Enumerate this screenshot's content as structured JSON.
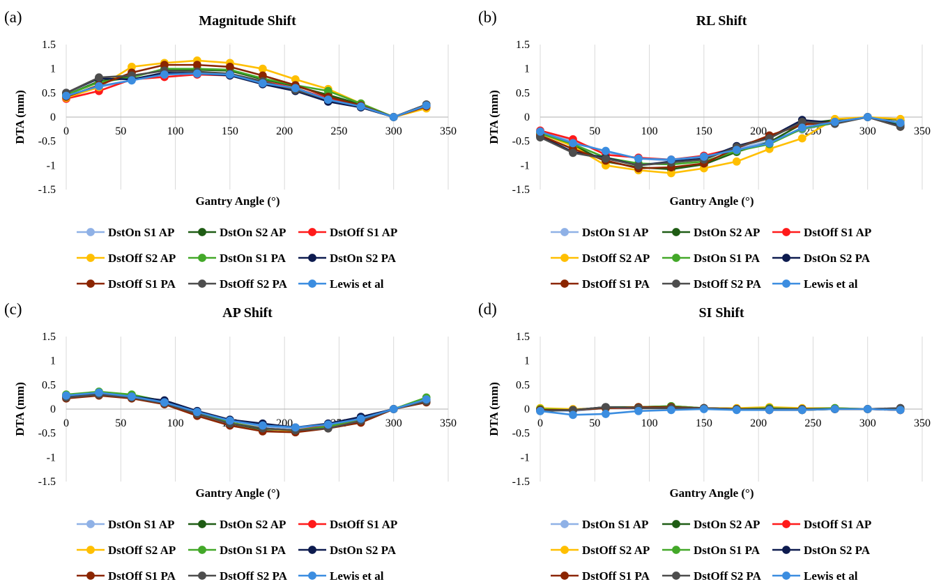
{
  "figure": {
    "panel_labels": [
      "(a)",
      "(b)",
      "(c)",
      "(d)"
    ]
  },
  "legend_labels": [
    "DstOn S1 AP",
    "DstOn S2 AP",
    "DstOff S1 AP",
    "DstOff S2 AP",
    "DstOn S1 PA",
    "DstOn S2 PA",
    "DstOff S1 PA",
    "DstOff S2 PA",
    "Lewis et al"
  ],
  "series_style": [
    {
      "color": "#8fb1e6",
      "hollow": false
    },
    {
      "color": "#1f5c14",
      "hollow": false
    },
    {
      "color": "#ff1a1a",
      "hollow": false
    },
    {
      "color": "#ffbf00",
      "hollow": false
    },
    {
      "color": "#43a829",
      "hollow": false
    },
    {
      "color": "#0d1b4f",
      "hollow": false
    },
    {
      "color": "#8b2500",
      "hollow": false
    },
    {
      "color": "#4d4d4d",
      "hollow": false
    },
    {
      "color": "#3b8de0",
      "hollow": false
    }
  ],
  "chart_data": [
    {
      "type": "line",
      "title": "Magnitude Shift",
      "xlabel": "Gantry Angle (°)",
      "ylabel": "DTA (mm)",
      "xlim": [
        0,
        350
      ],
      "ylim": [
        -1.5,
        1.5
      ],
      "xticks": [
        0,
        50,
        100,
        150,
        200,
        250,
        300,
        350
      ],
      "yticks": [
        1.5,
        1,
        0.5,
        0,
        -0.5,
        -1,
        -1.5
      ],
      "grid": true,
      "legend_position": "bottom",
      "x": [
        0,
        30,
        60,
        90,
        120,
        150,
        180,
        210,
        240,
        270,
        300,
        330
      ],
      "series": [
        {
          "name": "DstOn S1 AP",
          "values": [
            0.4,
            0.62,
            0.76,
            0.9,
            0.92,
            0.9,
            0.72,
            0.58,
            0.4,
            0.22,
            0,
            0.24
          ]
        },
        {
          "name": "DstOn S2 AP",
          "values": [
            0.46,
            0.74,
            0.84,
            0.98,
            0.98,
            0.96,
            0.78,
            0.64,
            0.46,
            0.26,
            0,
            0.24
          ]
        },
        {
          "name": "DstOff S1 AP",
          "values": [
            0.38,
            0.54,
            0.78,
            0.83,
            0.88,
            0.86,
            0.74,
            0.6,
            0.38,
            0.22,
            0,
            0.22
          ]
        },
        {
          "name": "DstOff S2 AP",
          "values": [
            0.4,
            0.62,
            1.04,
            1.12,
            1.17,
            1.12,
            1.0,
            0.78,
            0.58,
            0.28,
            0,
            0.18
          ]
        },
        {
          "name": "DstOn S1 PA",
          "values": [
            0.46,
            0.72,
            0.82,
            1.0,
            1.0,
            0.98,
            0.8,
            0.66,
            0.54,
            0.28,
            0,
            0.24
          ]
        },
        {
          "name": "DstOn S2 PA",
          "values": [
            0.5,
            0.8,
            0.78,
            0.92,
            0.9,
            0.86,
            0.68,
            0.54,
            0.32,
            0.2,
            0,
            0.26
          ]
        },
        {
          "name": "DstOff S1 PA",
          "values": [
            0.42,
            0.66,
            0.92,
            1.08,
            1.08,
            1.04,
            0.86,
            0.66,
            0.42,
            0.24,
            0,
            0.22
          ]
        },
        {
          "name": "DstOff S2 PA",
          "values": [
            0.5,
            0.82,
            0.86,
            0.96,
            0.94,
            0.9,
            0.74,
            0.56,
            0.36,
            0.22,
            0,
            0.26
          ]
        },
        {
          "name": "Lewis et al",
          "values": [
            0.44,
            0.64,
            0.76,
            0.88,
            0.9,
            0.88,
            0.7,
            0.6,
            0.36,
            0.22,
            0,
            0.24
          ]
        }
      ]
    },
    {
      "type": "line",
      "title": "RL Shift",
      "xlabel": "Gantry Angle (°)",
      "ylabel": "DTA (mm)",
      "xlim": [
        0,
        350
      ],
      "ylim": [
        -1.5,
        1.5
      ],
      "xticks": [
        0,
        50,
        100,
        150,
        200,
        250,
        300,
        350
      ],
      "yticks": [
        1.5,
        1,
        0.5,
        0,
        -0.5,
        -1,
        -1.5
      ],
      "grid": true,
      "legend_position": "bottom",
      "x": [
        0,
        30,
        60,
        90,
        120,
        150,
        180,
        210,
        240,
        270,
        300,
        330
      ],
      "series": [
        {
          "name": "DstOn S1 AP",
          "values": [
            -0.3,
            -0.5,
            -0.72,
            -0.86,
            -0.9,
            -0.84,
            -0.66,
            -0.5,
            -0.26,
            -0.12,
            0,
            -0.12
          ]
        },
        {
          "name": "DstOn S2 AP",
          "values": [
            -0.32,
            -0.58,
            -0.92,
            -1.04,
            -1.08,
            -0.98,
            -0.72,
            -0.52,
            -0.14,
            -0.06,
            0,
            -0.06
          ]
        },
        {
          "name": "DstOff S1 AP",
          "values": [
            -0.28,
            -0.46,
            -0.78,
            -0.84,
            -0.88,
            -0.8,
            -0.64,
            -0.4,
            -0.14,
            -0.1,
            0,
            -0.12
          ]
        },
        {
          "name": "DstOff S2 AP",
          "values": [
            -0.34,
            -0.6,
            -1.0,
            -1.1,
            -1.16,
            -1.06,
            -0.92,
            -0.66,
            -0.44,
            -0.04,
            0,
            -0.04
          ]
        },
        {
          "name": "DstOn S1 PA",
          "values": [
            -0.34,
            -0.56,
            -0.84,
            -0.96,
            -0.98,
            -0.92,
            -0.7,
            -0.56,
            -0.24,
            -0.12,
            0,
            -0.14
          ]
        },
        {
          "name": "DstOn S2 PA",
          "values": [
            -0.4,
            -0.72,
            -0.84,
            -1.0,
            -0.92,
            -0.86,
            -0.6,
            -0.42,
            -0.06,
            -0.12,
            0,
            -0.18
          ]
        },
        {
          "name": "DstOff S1 PA",
          "values": [
            -0.38,
            -0.66,
            -0.9,
            -1.06,
            -1.04,
            -0.96,
            -0.64,
            -0.38,
            -0.16,
            -0.1,
            0,
            -0.2
          ]
        },
        {
          "name": "DstOff S2 PA",
          "values": [
            -0.42,
            -0.74,
            -0.86,
            -1.0,
            -0.94,
            -0.88,
            -0.62,
            -0.44,
            -0.1,
            -0.14,
            0,
            -0.2
          ]
        },
        {
          "name": "Lewis et al",
          "values": [
            -0.3,
            -0.54,
            -0.7,
            -0.86,
            -0.88,
            -0.82,
            -0.68,
            -0.54,
            -0.22,
            -0.1,
            0,
            -0.12
          ]
        }
      ]
    },
    {
      "type": "line",
      "title": "AP Shift",
      "xlabel": "Gantry Angle (°)",
      "ylabel": "DTA (mm)",
      "xlim": [
        0,
        350
      ],
      "ylim": [
        -1.5,
        1.5
      ],
      "xticks": [
        0,
        50,
        100,
        150,
        200,
        250,
        300,
        350
      ],
      "yticks": [
        1.5,
        1,
        0.5,
        0,
        -0.5,
        -1,
        -1.5
      ],
      "grid": true,
      "legend_position": "bottom",
      "x": [
        0,
        30,
        60,
        90,
        120,
        150,
        180,
        210,
        240,
        270,
        300,
        330
      ],
      "series": [
        {
          "name": "DstOn S1 AP",
          "values": [
            0.26,
            0.32,
            0.26,
            0.14,
            -0.08,
            -0.24,
            -0.36,
            -0.4,
            -0.34,
            -0.2,
            0,
            0.2
          ]
        },
        {
          "name": "DstOn S2 AP",
          "values": [
            0.28,
            0.34,
            0.28,
            0.14,
            -0.1,
            -0.3,
            -0.42,
            -0.44,
            -0.36,
            -0.22,
            0,
            0.2
          ]
        },
        {
          "name": "DstOff S1 AP",
          "values": [
            0.24,
            0.3,
            0.24,
            0.12,
            -0.1,
            -0.28,
            -0.4,
            -0.44,
            -0.34,
            -0.2,
            0,
            0.18
          ]
        },
        {
          "name": "DstOff S2 AP",
          "values": [
            0.26,
            0.32,
            0.26,
            0.12,
            -0.1,
            -0.28,
            -0.4,
            -0.46,
            -0.38,
            -0.22,
            0,
            0.2
          ]
        },
        {
          "name": "DstOn S1 PA",
          "values": [
            0.3,
            0.36,
            0.3,
            0.16,
            -0.06,
            -0.28,
            -0.4,
            -0.44,
            -0.36,
            -0.2,
            0,
            0.24
          ]
        },
        {
          "name": "DstOn S2 PA",
          "values": [
            0.26,
            0.32,
            0.26,
            0.18,
            -0.04,
            -0.22,
            -0.3,
            -0.38,
            -0.3,
            -0.16,
            0,
            0.16
          ]
        },
        {
          "name": "DstOff S1 PA",
          "values": [
            0.22,
            0.28,
            0.22,
            0.1,
            -0.14,
            -0.34,
            -0.46,
            -0.48,
            -0.4,
            -0.28,
            0,
            0.14
          ]
        },
        {
          "name": "DstOff S2 PA",
          "values": [
            0.24,
            0.3,
            0.24,
            0.12,
            -0.1,
            -0.3,
            -0.4,
            -0.44,
            -0.4,
            -0.24,
            0,
            0.16
          ]
        },
        {
          "name": "Lewis et al",
          "values": [
            0.28,
            0.34,
            0.26,
            0.14,
            -0.06,
            -0.24,
            -0.34,
            -0.38,
            -0.32,
            -0.2,
            0,
            0.2
          ]
        }
      ]
    },
    {
      "type": "line",
      "title": "SI Shift",
      "xlabel": "Gantry Angle (°)",
      "ylabel": "DTA (mm)",
      "xlim": [
        0,
        350
      ],
      "ylim": [
        -1.5,
        1.5
      ],
      "xticks": [
        0,
        50,
        100,
        150,
        200,
        250,
        300,
        350
      ],
      "yticks": [
        1.5,
        1,
        0.5,
        0,
        -0.5,
        -1,
        -1.5
      ],
      "grid": true,
      "legend_position": "bottom",
      "x": [
        0,
        30,
        60,
        90,
        120,
        150,
        180,
        210,
        240,
        270,
        300,
        330
      ],
      "series": [
        {
          "name": "DstOn S1 AP",
          "values": [
            -0.02,
            -0.04,
            0.02,
            0.02,
            0.04,
            0.02,
            0.0,
            0.0,
            0.0,
            0.02,
            0,
            -0.02
          ]
        },
        {
          "name": "DstOn S2 AP",
          "values": [
            0.0,
            -0.02,
            0.04,
            0.04,
            0.06,
            0.02,
            0.0,
            0.0,
            -0.02,
            0.0,
            0,
            0.0
          ]
        },
        {
          "name": "DstOff S1 AP",
          "values": [
            0.0,
            -0.02,
            0.02,
            0.02,
            0.02,
            0.02,
            0.0,
            -0.02,
            0.0,
            0.0,
            0,
            -0.02
          ]
        },
        {
          "name": "DstOff S2 AP",
          "values": [
            0.02,
            0.0,
            0.02,
            0.04,
            0.04,
            0.02,
            0.02,
            0.04,
            0.02,
            0.02,
            0,
            0.0
          ]
        },
        {
          "name": "DstOn S1 PA",
          "values": [
            0.0,
            -0.02,
            0.02,
            0.04,
            0.06,
            0.02,
            0.0,
            0.02,
            0.0,
            0.02,
            0,
            0.0
          ]
        },
        {
          "name": "DstOn S2 PA",
          "values": [
            -0.02,
            -0.02,
            0.04,
            0.02,
            0.02,
            0.02,
            0.0,
            0.0,
            0.0,
            0.0,
            0,
            0.02
          ]
        },
        {
          "name": "DstOff S1 PA",
          "values": [
            -0.02,
            -0.02,
            0.02,
            0.04,
            0.04,
            0.02,
            0.0,
            -0.02,
            -0.02,
            0.0,
            0,
            -0.02
          ]
        },
        {
          "name": "DstOff S2 PA",
          "values": [
            -0.04,
            -0.02,
            0.04,
            0.02,
            0.02,
            0.02,
            0.0,
            0.0,
            0.0,
            0.0,
            0,
            0.02
          ]
        },
        {
          "name": "Lewis et al",
          "values": [
            -0.04,
            -0.12,
            -0.1,
            -0.04,
            -0.02,
            0.0,
            -0.02,
            -0.02,
            -0.02,
            0.0,
            0,
            -0.02
          ]
        }
      ]
    }
  ]
}
